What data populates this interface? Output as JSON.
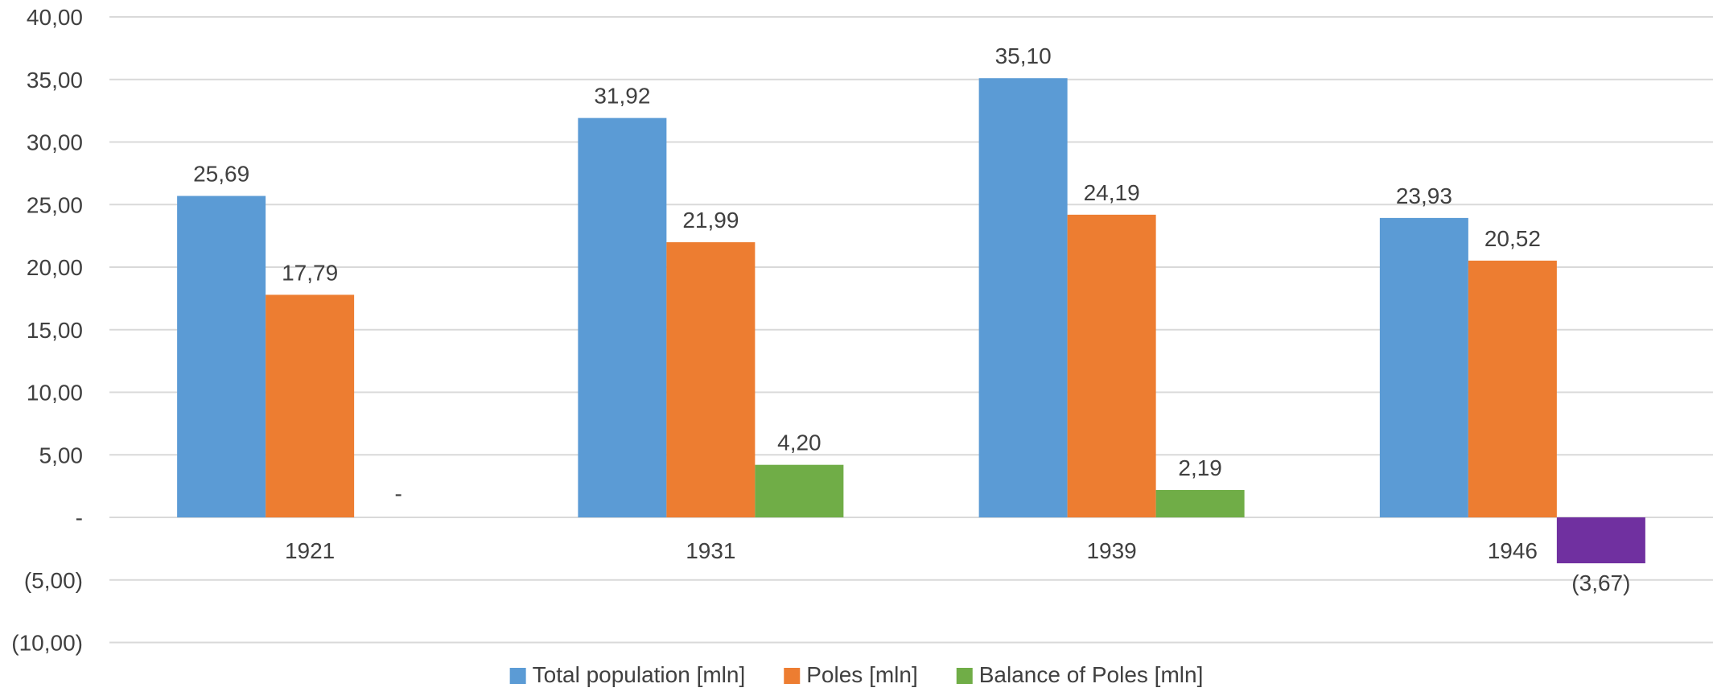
{
  "chart_data": {
    "type": "bar",
    "categories": [
      "1921",
      "1931",
      "1939",
      "1946"
    ],
    "series": [
      {
        "name": "Total population [mln]",
        "color": "#5b9bd5",
        "values": [
          25.69,
          31.92,
          35.1,
          23.93
        ],
        "labels": [
          "25,69",
          "31,92",
          "35,10",
          "23,93"
        ]
      },
      {
        "name": "Poles [mln]",
        "color": "#ed7d31",
        "values": [
          17.79,
          21.99,
          24.19,
          20.52
        ],
        "labels": [
          "17,79",
          "21,99",
          "24,19",
          "20,52"
        ]
      },
      {
        "name": "Balance of Poles [mln]",
        "color": "#70ad47",
        "negative_color": "#7030a0",
        "values": [
          0,
          4.2,
          2.19,
          -3.67
        ],
        "labels": [
          "-",
          "4,20",
          "2,19",
          "(3,67)"
        ]
      }
    ],
    "ylim": [
      -10,
      40
    ],
    "y_ticks": [
      40,
      35,
      30,
      25,
      20,
      15,
      10,
      5,
      0,
      -5,
      -10
    ],
    "y_tick_labels": [
      "40,00",
      "35,00",
      "30,00",
      "25,00",
      "20,00",
      "15,00",
      "10,00",
      "5,00",
      "-",
      "(5,00)",
      "(10,00)"
    ],
    "grid": true,
    "legend": "bottom",
    "title": "",
    "xlabel": "",
    "ylabel": ""
  }
}
